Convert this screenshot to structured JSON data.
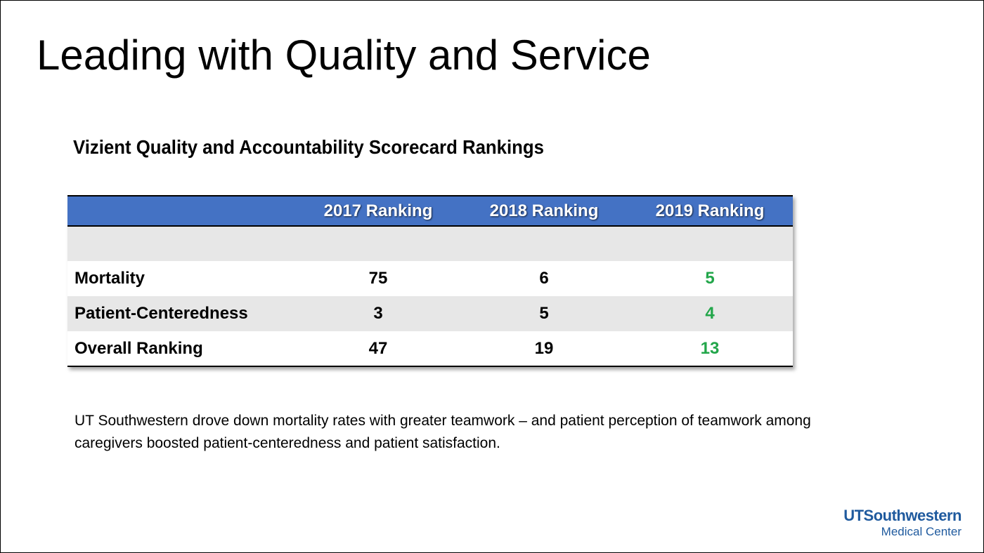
{
  "title": "Leading with Quality and Service",
  "subtitle": "Vizient Quality and Accountability Scorecard Rankings",
  "table": {
    "headers": [
      "",
      "2017 Ranking",
      "2018 Ranking",
      "2019 Ranking"
    ],
    "rows": [
      {
        "label": "Mortality",
        "values": [
          "75",
          "6",
          "5"
        ]
      },
      {
        "label": "Patient-Centeredness",
        "values": [
          "3",
          "5",
          "4"
        ]
      },
      {
        "label": "Overall Ranking",
        "values": [
          "47",
          "19",
          "13"
        ]
      }
    ]
  },
  "body_text": "UT Southwestern drove down mortality rates with greater teamwork – and patient perception of teamwork among caregivers boosted patient-centeredness and patient satisfaction.",
  "logo": {
    "line1": "UTSouthwestern",
    "line2": "Medical Center"
  },
  "colors": {
    "header_blue": "#4472c4",
    "highlight_green": "#22a64a",
    "logo_blue": "#1f5a9e"
  }
}
